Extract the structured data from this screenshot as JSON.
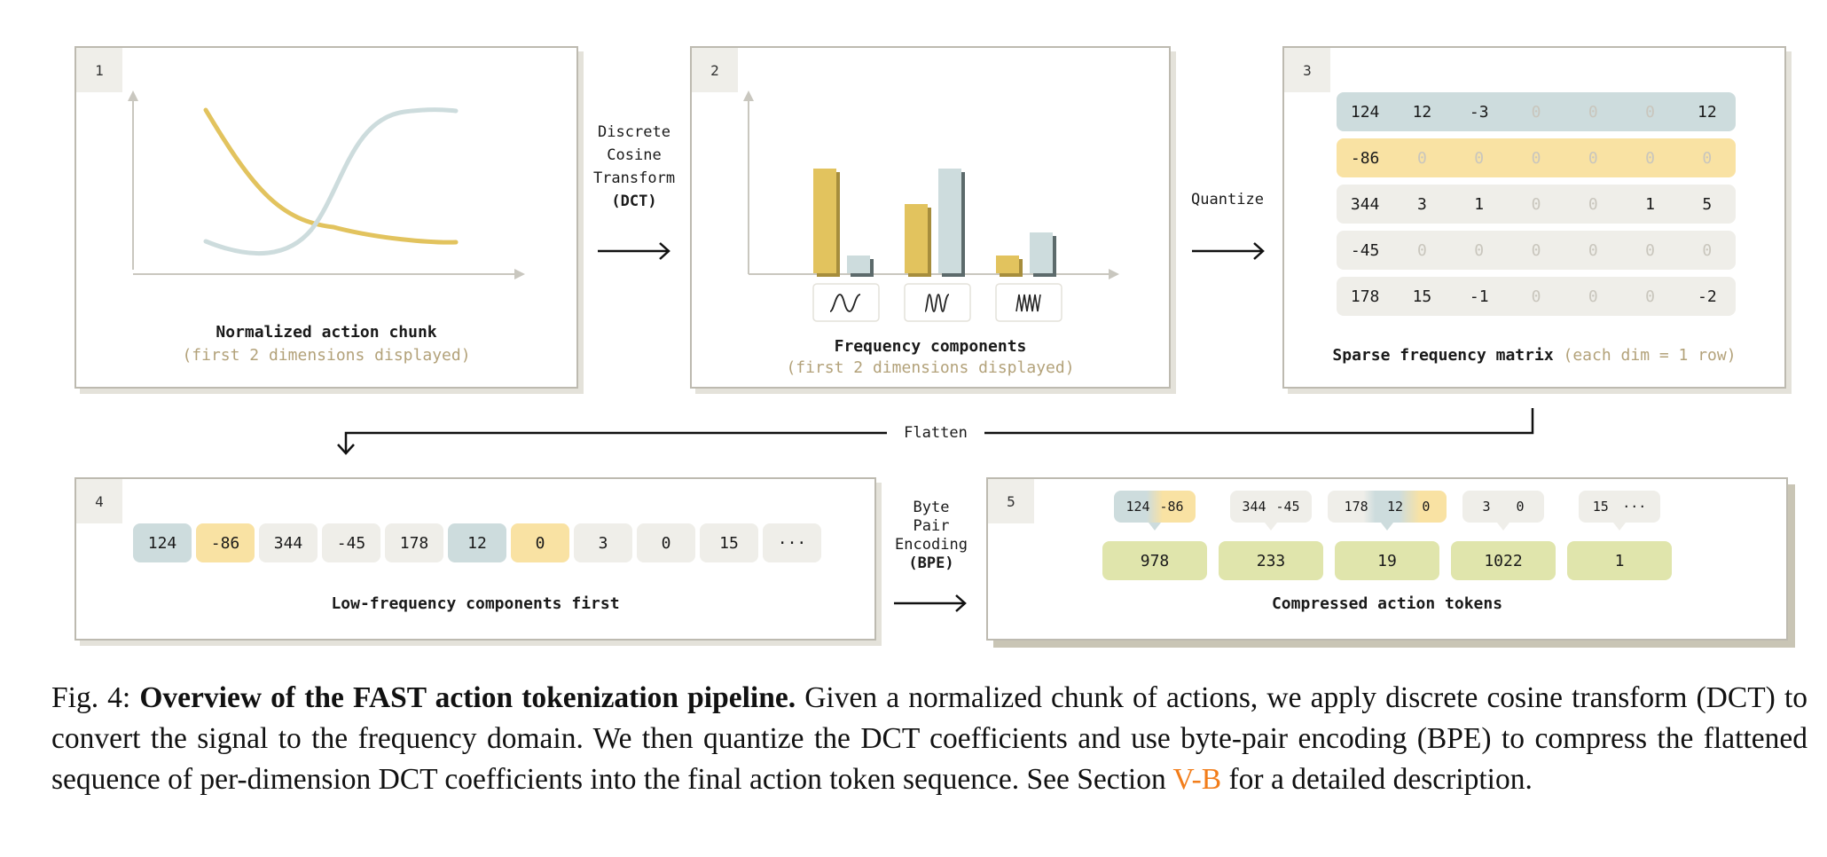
{
  "panels": {
    "p1": {
      "number": "1",
      "title": "Normalized action chunk",
      "subtitle": "(first 2 dimensions displayed)"
    },
    "p2": {
      "number": "2",
      "title": "Frequency components",
      "subtitle": "(first 2 dimensions displayed)"
    },
    "p3": {
      "number": "3",
      "title": "Sparse frequency matrix",
      "subtitle": "(each dim = 1 row)"
    },
    "p4": {
      "number": "4",
      "title": "Low-frequency components first"
    },
    "p5": {
      "number": "5",
      "title": "Compressed action tokens"
    }
  },
  "arrows": {
    "dct": {
      "line1": "Discrete",
      "line2": "Cosine",
      "line3": "Transform",
      "line4": "(DCT)"
    },
    "quantize": "Quantize",
    "flatten": "Flatten",
    "bpe": {
      "line1": "Byte",
      "line2": "Pair",
      "line3": "Encoding",
      "line4": "(BPE)"
    }
  },
  "colors": {
    "blue": "#cddcdd",
    "yellow": "#f9e2a3",
    "gray": "#efeee9",
    "gold": "#e2c35e",
    "token": "#e0e5ac",
    "accent": "#f27d1a"
  },
  "frequency_bars": {
    "groups": [
      {
        "gold": 118,
        "blue": 20,
        "icon": "low-frequency-wave-icon"
      },
      {
        "gold": 78,
        "blue": 118,
        "icon": "mid-frequency-wave-icon"
      },
      {
        "gold": 20,
        "blue": 46,
        "icon": "high-frequency-wave-icon"
      }
    ]
  },
  "matrix": {
    "rows": [
      {
        "color": "blue",
        "cells": [
          "124",
          "12",
          "-3",
          "0",
          "0",
          "0",
          "12"
        ]
      },
      {
        "color": "yellow",
        "cells": [
          "-86",
          "0",
          "0",
          "0",
          "0",
          "0",
          "0"
        ]
      },
      {
        "color": "gray",
        "cells": [
          "344",
          "3",
          "1",
          "0",
          "0",
          "1",
          "5"
        ]
      },
      {
        "color": "gray",
        "cells": [
          "-45",
          "0",
          "0",
          "0",
          "0",
          "0",
          "0"
        ]
      },
      {
        "color": "gray",
        "cells": [
          "178",
          "15",
          "-1",
          "0",
          "0",
          "0",
          "-2"
        ]
      }
    ]
  },
  "sequence": [
    {
      "v": "124",
      "c": "blue"
    },
    {
      "v": "-86",
      "c": "yellow"
    },
    {
      "v": "344",
      "c": "gray"
    },
    {
      "v": "-45",
      "c": "gray"
    },
    {
      "v": "178",
      "c": "gray"
    },
    {
      "v": "12",
      "c": "blue"
    },
    {
      "v": "0",
      "c": "yellow"
    },
    {
      "v": "3",
      "c": "gray"
    },
    {
      "v": "0",
      "c": "gray"
    },
    {
      "v": "15",
      "c": "gray"
    },
    {
      "v": "···",
      "c": "gray"
    }
  ],
  "bpe_groups": [
    {
      "items": [
        "124",
        "-86"
      ],
      "token": "978",
      "style": "blue-yellow"
    },
    {
      "items": [
        "344",
        "-45"
      ],
      "token": "233",
      "style": "gray"
    },
    {
      "items": [
        "178",
        "12",
        "0"
      ],
      "token": "19",
      "style": "gray-blue-yellow"
    },
    {
      "items": [
        "3",
        "0"
      ],
      "token": "1022",
      "style": "gray"
    },
    {
      "items": [
        "15",
        "···"
      ],
      "token": "1",
      "style": "gray"
    }
  ],
  "caption": {
    "prefix": "Fig. 4: ",
    "bold": "Overview of the FAST action tokenization pipeline.",
    "text1": " Given a normalized chunk of actions, we apply discrete cosine transform (DCT) to convert the signal to the frequency domain. We then quantize the DCT coefficients and use byte-pair encoding (BPE) to compress the flattened sequence of per-dimension DCT coefficients into the final action token sequence. See Section ",
    "link": "V-B",
    "text2": " for a detailed description."
  }
}
